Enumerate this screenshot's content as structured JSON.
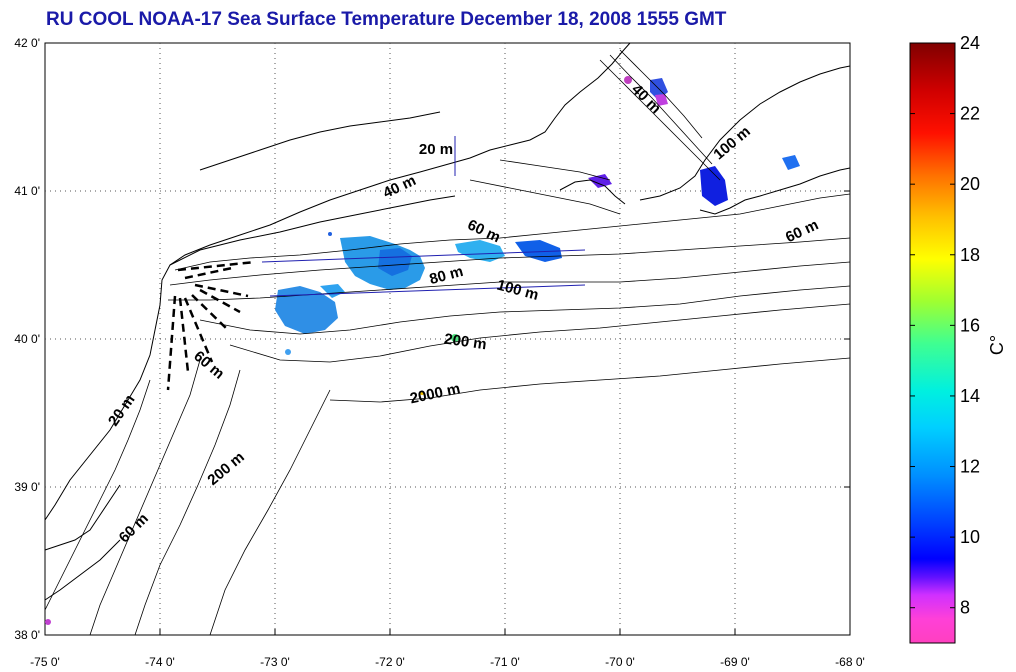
{
  "title": "RU COOL  NOAA-17 Sea Surface Temperature December 18, 2008 1555 GMT",
  "map": {
    "lon_ticks": [
      "-75 0'",
      "-74 0'",
      "-73 0'",
      "-72 0'",
      "-71 0'",
      "-70 0'",
      "-69 0'",
      "-68 0'"
    ],
    "lat_ticks": [
      "42 0'",
      "41 0'",
      "40 0'",
      "39 0'",
      "38 0'"
    ],
    "grid": "dotted",
    "depth_labels": [
      {
        "text": "20 m",
        "lon": -71.6,
        "lat": 41.25,
        "angle": 0
      },
      {
        "text": "40 m",
        "lon": -71.9,
        "lat": 41.0,
        "angle": -25
      },
      {
        "text": "40 m",
        "lon": -69.8,
        "lat": 41.6,
        "angle": 45
      },
      {
        "text": "100 m",
        "lon": -69.0,
        "lat": 41.3,
        "angle": -40
      },
      {
        "text": "60 m",
        "lon": -71.2,
        "lat": 40.7,
        "angle": 25
      },
      {
        "text": "60 m",
        "lon": -68.4,
        "lat": 40.7,
        "angle": -25
      },
      {
        "text": "80 m",
        "lon": -71.5,
        "lat": 40.4,
        "angle": -15
      },
      {
        "text": "100 m",
        "lon": -70.9,
        "lat": 40.3,
        "angle": 15
      },
      {
        "text": "200 m",
        "lon": -71.35,
        "lat": 39.95,
        "angle": 8
      },
      {
        "text": "60 m",
        "lon": -73.6,
        "lat": 39.8,
        "angle": 40
      },
      {
        "text": "2000 m",
        "lon": -71.6,
        "lat": 39.6,
        "angle": -12
      },
      {
        "text": "20 m",
        "lon": -74.3,
        "lat": 39.5,
        "angle": -55
      },
      {
        "text": "200 m",
        "lon": -73.4,
        "lat": 39.1,
        "angle": -40
      },
      {
        "text": "60 m",
        "lon": -74.2,
        "lat": 38.7,
        "angle": -45
      }
    ]
  },
  "colorbar": {
    "label": "C°",
    "min": 7,
    "max": 24,
    "ticks": [
      "24",
      "22",
      "20",
      "18",
      "16",
      "14",
      "12",
      "10",
      "8"
    ],
    "tick_values": [
      24,
      22,
      20,
      18,
      16,
      14,
      12,
      10,
      8
    ],
    "colors": [
      "#ff40c0",
      "#9020ff",
      "#0000ff",
      "#00a0ff",
      "#00e8e8",
      "#40ff80",
      "#c0ff00",
      "#ffff00",
      "#ffa000",
      "#ff2000",
      "#c00000",
      "#800000"
    ]
  }
}
